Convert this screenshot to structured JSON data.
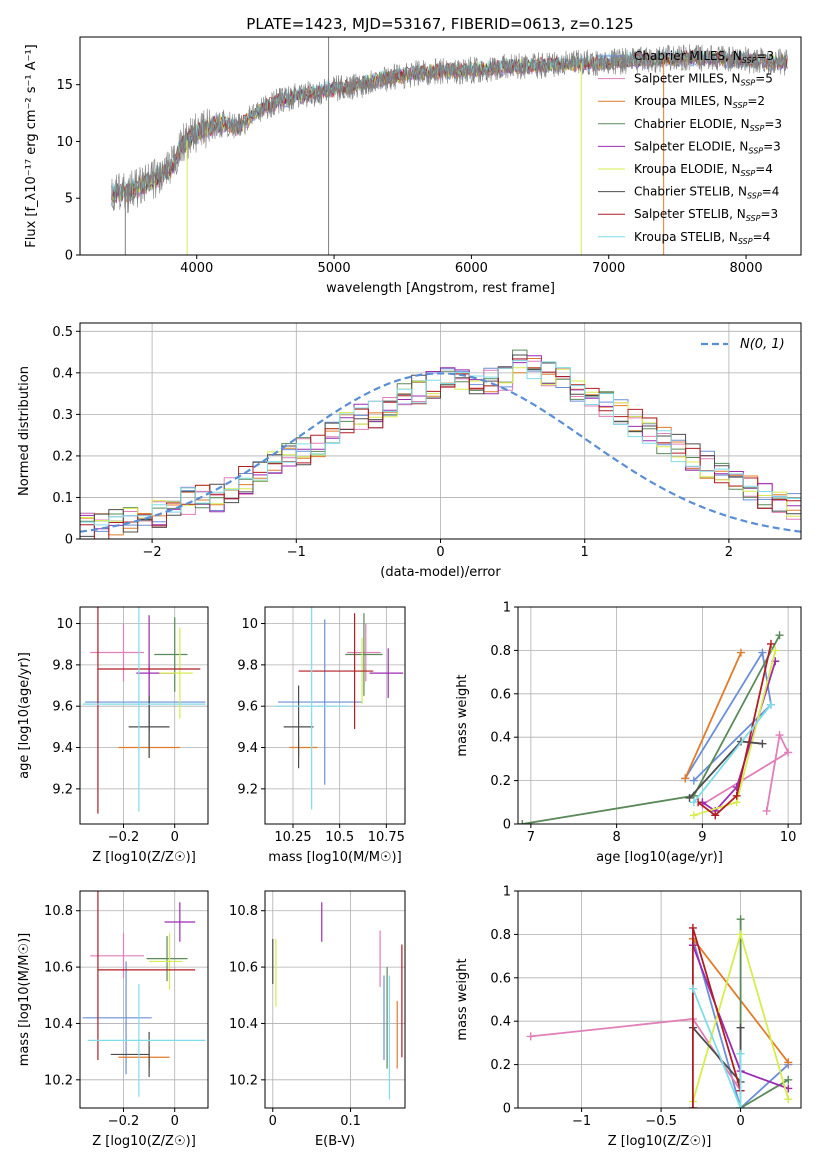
{
  "figure": {
    "title": "PLATE=1423, MJD=53167, FIBERID=0613, z=0.125"
  },
  "series_styles": [
    {
      "name": "Chabrier MILES",
      "nssp": "3",
      "color": "#6b8fd6"
    },
    {
      "name": "Salpeter MILES",
      "nssp": "5",
      "color": "#e07fb8"
    },
    {
      "name": "Kroupa MILES",
      "nssp": "2",
      "color": "#e07c2a"
    },
    {
      "name": "Chabrier ELODIE",
      "nssp": "3",
      "color": "#5a8a5a"
    },
    {
      "name": "Salpeter ELODIE",
      "nssp": "3",
      "color": "#9c2bb0"
    },
    {
      "name": "Kroupa ELODIE",
      "nssp": "4",
      "color": "#d7ec4e"
    },
    {
      "name": "Chabrier STELIB",
      "nssp": "4",
      "color": "#4d4d4d"
    },
    {
      "name": "Salpeter STELIB",
      "nssp": "3",
      "color": "#b01e24"
    },
    {
      "name": "Kroupa STELIB",
      "nssp": "4",
      "color": "#7fdde8"
    }
  ],
  "chart_data": [
    {
      "id": "spectrum",
      "type": "line",
      "xlabel": "wavelength [Angstrom, rest frame]",
      "ylabel": "Flux [f_λ10⁻¹⁷ erg cm⁻² s⁻¹ A⁻¹]",
      "xlim": [
        3150,
        8400
      ],
      "ylim": [
        0,
        19.2
      ],
      "xticks": [
        4000,
        5000,
        6000,
        7000,
        8000
      ],
      "yticks": [
        0,
        5,
        10,
        15
      ],
      "legend": "upper right",
      "data_continuum": {
        "x": [
          3350,
          3500,
          3600,
          3700,
          3800,
          3900,
          4000,
          4100,
          4200,
          4300,
          4400,
          4500,
          4600,
          4700,
          4800,
          4900,
          5000,
          5100,
          5200,
          5300,
          5400,
          5500,
          5600,
          5700,
          5800,
          5900,
          6000,
          6100,
          6200,
          6300,
          6400,
          6500,
          6600,
          6700,
          6800,
          6900,
          7000,
          7100,
          7200,
          7300,
          7400,
          7500,
          7600,
          7700,
          7800,
          7900,
          8000,
          8100,
          8200,
          8300
        ],
        "y": [
          5.3,
          5.5,
          6.1,
          6.8,
          7.4,
          9.8,
          10.8,
          11.3,
          11.6,
          11.2,
          12.3,
          13.0,
          13.6,
          13.9,
          14.1,
          14.4,
          14.6,
          14.8,
          15.0,
          15.4,
          15.6,
          15.8,
          16.0,
          16.1,
          16.2,
          16.2,
          16.3,
          16.3,
          16.5,
          16.6,
          16.6,
          16.7,
          16.8,
          16.8,
          16.9,
          16.9,
          17.0,
          17.1,
          17.2,
          17.1,
          17.3,
          17.3,
          17.4,
          17.3,
          17.3,
          17.2,
          17.2,
          17.1,
          17.0,
          17.0
        ]
      },
      "dropouts_x": [
        3480,
        3930,
        4960,
        6800,
        7400
      ]
    },
    {
      "id": "residuals",
      "type": "bar",
      "xlabel": "(data-model)/error",
      "ylabel": "Normed distribution",
      "xlim": [
        -2.5,
        2.5
      ],
      "ylim": [
        0,
        0.52
      ],
      "xticks": [
        -2,
        -1,
        0,
        1,
        2
      ],
      "yticks": [
        0.0,
        0.1,
        0.2,
        0.3,
        0.4,
        0.5
      ],
      "grid": true,
      "legend": "upper right",
      "reference": {
        "name": "N(0, 1)",
        "mean": 0,
        "sigma": 1
      },
      "bin_width": 0.1,
      "bins_start": -2.5,
      "counts": [
        0.03,
        0.03,
        0.04,
        0.05,
        0.05,
        0.06,
        0.07,
        0.09,
        0.1,
        0.1,
        0.12,
        0.14,
        0.16,
        0.18,
        0.2,
        0.21,
        0.23,
        0.25,
        0.27,
        0.29,
        0.3,
        0.32,
        0.34,
        0.36,
        0.37,
        0.38,
        0.39,
        0.38,
        0.38,
        0.39,
        0.42,
        0.41,
        0.4,
        0.38,
        0.36,
        0.35,
        0.33,
        0.31,
        0.28,
        0.26,
        0.24,
        0.22,
        0.2,
        0.18,
        0.16,
        0.14,
        0.12,
        0.1,
        0.09,
        0.08,
        0.07,
        0.06,
        0.05,
        0.05,
        0.04,
        0.04,
        0.03,
        0.03
      ]
    },
    {
      "id": "age-vs-metallicity",
      "type": "scatter",
      "xlabel": "Z [log10(Z/Z☉)]",
      "ylabel": "age  [log10(age/yr)]",
      "xlim": [
        -0.37,
        0.13
      ],
      "ylim": [
        9.03,
        10.08
      ],
      "xticks": [
        -0.2,
        0.0
      ],
      "yticks": [
        9.2,
        9.4,
        9.6,
        9.8,
        10.0
      ],
      "grid": true,
      "points": [
        {
          "x": -0.1,
          "xerr_lo": 0.25,
          "xerr_hi": 0.22,
          "y": 9.62,
          "yerr": 0.18
        },
        {
          "x": -0.2,
          "xerr_lo": 0.13,
          "xerr_hi": 0.08,
          "y": 9.86,
          "yerr": 0.14
        },
        {
          "x": -0.1,
          "xerr_lo": 0.12,
          "xerr_hi": 0.12,
          "y": 9.4,
          "yerr": 0.05
        },
        {
          "x": 0.0,
          "xerr_lo": 0.08,
          "xerr_hi": 0.05,
          "y": 9.85,
          "yerr": 0.18
        },
        {
          "x": -0.1,
          "xerr_lo": 0.05,
          "xerr_hi": 0.1,
          "y": 9.76,
          "yerr": 0.28
        },
        {
          "x": 0.02,
          "xerr_lo": 0.08,
          "xerr_hi": 0.05,
          "y": 9.76,
          "yerr": 0.22
        },
        {
          "x": -0.1,
          "xerr_lo": 0.08,
          "xerr_hi": 0.08,
          "y": 9.5,
          "yerr": 0.15
        },
        {
          "x": -0.3,
          "xerr_lo": 0.0,
          "xerr_hi": 0.4,
          "y": 9.78,
          "yerr": 0.7
        },
        {
          "x": -0.14,
          "xerr_lo": 0.22,
          "xerr_hi": 0.26,
          "y": 9.61,
          "yerr": 0.52
        }
      ]
    },
    {
      "id": "age-vs-mass",
      "type": "scatter",
      "xlabel": "mass [log10(M/M☉)]",
      "ylabel": "",
      "xlim": [
        10.1,
        10.85
      ],
      "ylim": [
        9.03,
        10.08
      ],
      "xticks": [
        10.25,
        10.5,
        10.75
      ],
      "yticks": [
        9.2,
        9.4,
        9.6,
        9.8,
        10.0
      ],
      "grid": true,
      "points": [
        {
          "x": 10.42,
          "xerr_lo": 0.25,
          "xerr_hi": 0.2,
          "y": 9.62,
          "yerr": 0.4
        },
        {
          "x": 10.64,
          "xerr_lo": 0.1,
          "xerr_hi": 0.08,
          "y": 9.86,
          "yerr": 0.14
        },
        {
          "x": 10.28,
          "xerr_lo": 0.05,
          "xerr_hi": 0.1,
          "y": 9.4,
          "yerr": 0.05
        },
        {
          "x": 10.63,
          "xerr_lo": 0.1,
          "xerr_hi": 0.1,
          "y": 9.85,
          "yerr": 0.2
        },
        {
          "x": 10.76,
          "xerr_lo": 0.1,
          "xerr_hi": 0.08,
          "y": 9.76,
          "yerr": 0.12
        },
        {
          "x": 10.62,
          "xerr_lo": 0.05,
          "xerr_hi": 0.05,
          "y": 9.77,
          "yerr": 0.16
        },
        {
          "x": 10.28,
          "xerr_lo": 0.08,
          "xerr_hi": 0.08,
          "y": 9.5,
          "yerr": 0.2
        },
        {
          "x": 10.58,
          "xerr_lo": 0.3,
          "xerr_hi": 0.1,
          "y": 9.77,
          "yerr": 0.28
        },
        {
          "x": 10.35,
          "xerr_lo": 0.2,
          "xerr_hi": 0.2,
          "y": 9.6,
          "yerr": 0.5
        }
      ]
    },
    {
      "id": "massweight-vs-age",
      "type": "line",
      "xlabel": "age  [log10(age/yr)]",
      "ylabel": "mass weight",
      "xlim": [
        6.85,
        10.15
      ],
      "ylim": [
        0,
        1
      ],
      "xticks": [
        7,
        8,
        9,
        10
      ],
      "yticks": [
        0.0,
        0.2,
        0.4,
        0.6,
        0.8,
        1.0
      ],
      "grid": true,
      "lines": [
        {
          "x": [
            8.8,
            9.7,
            9.8,
            8.9
          ],
          "y": [
            0.21,
            0.79,
            0.55,
            0.2
          ]
        },
        {
          "x": [
            9.75,
            9.9,
            10.0,
            9.0
          ],
          "y": [
            0.06,
            0.41,
            0.33,
            0.09
          ]
        },
        {
          "x": [
            8.8,
            9.45
          ],
          "y": [
            0.21,
            0.79
          ]
        },
        {
          "x": [
            6.9,
            8.9,
            9.9
          ],
          "y": [
            0.0,
            0.13,
            0.87
          ]
        },
        {
          "x": [
            9.0,
            9.15,
            9.4,
            9.85
          ],
          "y": [
            0.1,
            0.06,
            0.17,
            0.75
          ]
        },
        {
          "x": [
            8.9,
            9.4,
            9.85
          ],
          "y": [
            0.04,
            0.1,
            0.8
          ]
        },
        {
          "x": [
            8.85,
            9.45,
            9.7
          ],
          "y": [
            0.12,
            0.38,
            0.37
          ]
        },
        {
          "x": [
            8.95,
            9.15,
            9.4,
            9.8
          ],
          "y": [
            0.1,
            0.04,
            0.13,
            0.83
          ]
        },
        {
          "x": [
            8.9,
            9.8
          ],
          "y": [
            0.1,
            0.55
          ]
        }
      ]
    },
    {
      "id": "mass-vs-metallicity",
      "type": "scatter",
      "xlabel": "Z [log10(Z/Z☉)]",
      "ylabel": "mass [log10(M/M☉)]",
      "xlim": [
        -0.37,
        0.13
      ],
      "ylim": [
        10.1,
        10.87
      ],
      "xticks": [
        -0.2,
        0.0
      ],
      "yticks": [
        10.2,
        10.4,
        10.6,
        10.8
      ],
      "grid": true,
      "points": [
        {
          "x": -0.19,
          "xerr_lo": 0.17,
          "xerr_hi": 0.1,
          "y": 10.42,
          "yerr": 0.2
        },
        {
          "x": -0.2,
          "xerr_lo": 0.13,
          "xerr_hi": 0.08,
          "y": 10.64,
          "yerr": 0.08
        },
        {
          "x": -0.1,
          "xerr_lo": 0.12,
          "xerr_hi": 0.08,
          "y": 10.28,
          "yerr": 0.04
        },
        {
          "x": -0.03,
          "xerr_lo": 0.08,
          "xerr_hi": 0.08,
          "y": 10.63,
          "yerr": 0.08
        },
        {
          "x": 0.02,
          "xerr_lo": 0.06,
          "xerr_hi": 0.06,
          "y": 10.76,
          "yerr": 0.07
        },
        {
          "x": -0.02,
          "xerr_lo": 0.08,
          "xerr_hi": 0.05,
          "y": 10.62,
          "yerr": 0.1
        },
        {
          "x": -0.1,
          "xerr_lo": 0.15,
          "xerr_hi": 0.0,
          "y": 10.29,
          "yerr": 0.08
        },
        {
          "x": -0.3,
          "xerr_lo": 0.0,
          "xerr_hi": 0.38,
          "y": 10.59,
          "yerr": 0.32
        },
        {
          "x": -0.14,
          "xerr_lo": 0.2,
          "xerr_hi": 0.26,
          "y": 10.34,
          "yerr": 0.2
        }
      ]
    },
    {
      "id": "mass-vs-ebv",
      "type": "scatter",
      "xlabel": "E(B-V)",
      "ylabel": "",
      "xlim": [
        -0.01,
        0.17
      ],
      "ylim": [
        10.1,
        10.87
      ],
      "xticks": [
        0.0,
        0.1
      ],
      "yticks": [
        10.2,
        10.4,
        10.6,
        10.8
      ],
      "grid": true,
      "points": [
        {
          "x": 0.143,
          "xerr_lo": 0,
          "xerr_hi": 0,
          "y": 10.42,
          "yerr": 0.15
        },
        {
          "x": 0.138,
          "xerr_lo": 0,
          "xerr_hi": 0,
          "y": 10.63,
          "yerr": 0.1
        },
        {
          "x": 0.16,
          "xerr_lo": 0,
          "xerr_hi": 0,
          "y": 10.36,
          "yerr": 0.12
        },
        {
          "x": 0.147,
          "xerr_lo": 0,
          "xerr_hi": 0,
          "y": 10.42,
          "yerr": 0.18
        },
        {
          "x": 0.063,
          "xerr_lo": 0,
          "xerr_hi": 0,
          "y": 10.76,
          "yerr": 0.07
        },
        {
          "x": 0.004,
          "xerr_lo": 0,
          "xerr_hi": 0,
          "y": 10.58,
          "yerr": 0.12
        },
        {
          "x": 0.0,
          "xerr_lo": 0,
          "xerr_hi": 0,
          "y": 10.62,
          "yerr": 0.08
        },
        {
          "x": 0.166,
          "xerr_lo": 0,
          "xerr_hi": 0,
          "y": 10.48,
          "yerr": 0.2
        },
        {
          "x": 0.15,
          "xerr_lo": 0,
          "xerr_hi": 0,
          "y": 10.35,
          "yerr": 0.22
        }
      ]
    },
    {
      "id": "massweight-vs-metallicity",
      "type": "line",
      "xlabel": "Z [log10(Z/Z☉)]",
      "ylabel": "mass weight",
      "xlim": [
        -1.4,
        0.38
      ],
      "ylim": [
        0,
        1
      ],
      "xticks": [
        -1.0,
        -0.5,
        0.0
      ],
      "yticks": [
        0.0,
        0.2,
        0.4,
        0.6,
        0.8,
        1.0
      ],
      "grid": true,
      "lines": [
        {
          "x": [
            -0.3,
            0.0,
            0.3
          ],
          "y": [
            0.78,
            0.0,
            0.2
          ]
        },
        {
          "x": [
            -1.32,
            -0.3,
            0.0
          ],
          "y": [
            0.33,
            0.41,
            0.08
          ]
        },
        {
          "x": [
            -0.3,
            0.3
          ],
          "y": [
            0.78,
            0.21
          ]
        },
        {
          "x": [
            0.0,
            0.0,
            0.3
          ],
          "y": [
            0.87,
            0.0,
            0.13
          ]
        },
        {
          "x": [
            -0.3,
            0.0,
            0.3
          ],
          "y": [
            0.75,
            0.17,
            0.09
          ]
        },
        {
          "x": [
            -0.3,
            0.0,
            0.3
          ],
          "y": [
            0.03,
            0.8,
            0.04
          ]
        },
        {
          "x": [
            -0.3,
            0.0,
            0.0
          ],
          "y": [
            0.37,
            0.12,
            0.37
          ]
        },
        {
          "x": [
            -0.3,
            -0.3,
            0.0
          ],
          "y": [
            0.0,
            0.83,
            0.08
          ]
        },
        {
          "x": [
            -0.3,
            0.0,
            0.0
          ],
          "y": [
            0.55,
            0.0,
            0.25
          ]
        }
      ]
    }
  ]
}
